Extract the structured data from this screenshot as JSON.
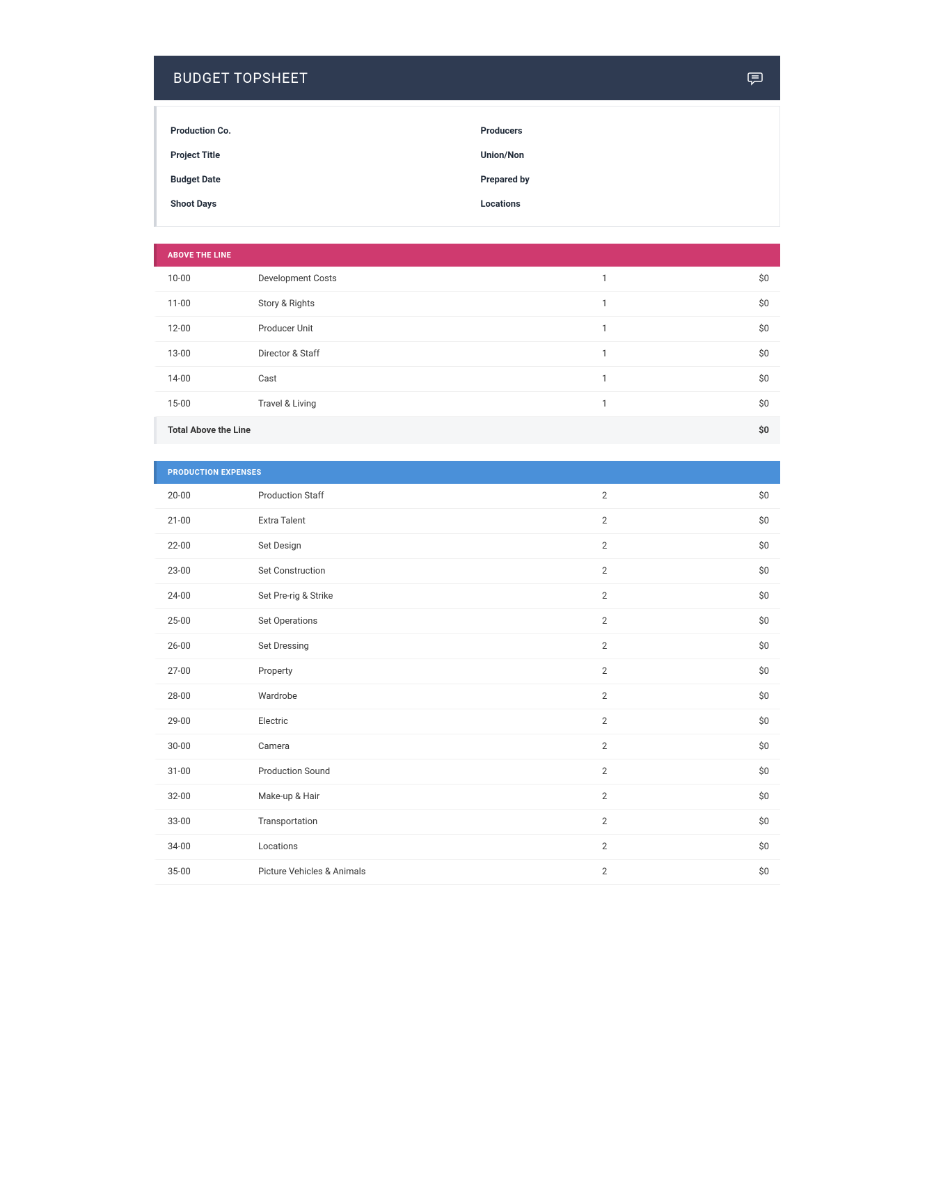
{
  "header": {
    "title": "BUDGET TOPSHEET"
  },
  "info": {
    "left": [
      {
        "label": "Production Co."
      },
      {
        "label": "Project Title"
      },
      {
        "label": "Budget Date"
      },
      {
        "label": "Shoot Days"
      }
    ],
    "right": [
      {
        "label": "Producers"
      },
      {
        "label": "Union/Non"
      },
      {
        "label": "Prepared by"
      },
      {
        "label": "Locations"
      }
    ]
  },
  "sections": [
    {
      "title": "ABOVE THE LINE",
      "color_class": "pink",
      "color": "#cf3a6f",
      "items": [
        {
          "code": "10-00",
          "desc": "Development Costs",
          "page": "1",
          "amount": "$0"
        },
        {
          "code": "11-00",
          "desc": "Story & Rights",
          "page": "1",
          "amount": "$0"
        },
        {
          "code": "12-00",
          "desc": "Producer Unit",
          "page": "1",
          "amount": "$0"
        },
        {
          "code": "13-00",
          "desc": "Director & Staff",
          "page": "1",
          "amount": "$0"
        },
        {
          "code": "14-00",
          "desc": "Cast",
          "page": "1",
          "amount": "$0"
        },
        {
          "code": "15-00",
          "desc": "Travel & Living",
          "page": "1",
          "amount": "$0"
        }
      ],
      "total_label": "Total Above the Line",
      "total_amount": "$0"
    },
    {
      "title": "PRODUCTION EXPENSES",
      "color_class": "blue",
      "color": "#4a90d9",
      "items": [
        {
          "code": "20-00",
          "desc": "Production Staff",
          "page": "2",
          "amount": "$0"
        },
        {
          "code": "21-00",
          "desc": "Extra Talent",
          "page": "2",
          "amount": "$0"
        },
        {
          "code": "22-00",
          "desc": "Set Design",
          "page": "2",
          "amount": "$0"
        },
        {
          "code": "23-00",
          "desc": "Set Construction",
          "page": "2",
          "amount": "$0"
        },
        {
          "code": "24-00",
          "desc": "Set Pre-rig & Strike",
          "page": "2",
          "amount": "$0"
        },
        {
          "code": "25-00",
          "desc": "Set Operations",
          "page": "2",
          "amount": "$0"
        },
        {
          "code": "26-00",
          "desc": "Set Dressing",
          "page": "2",
          "amount": "$0"
        },
        {
          "code": "27-00",
          "desc": "Property",
          "page": "2",
          "amount": "$0"
        },
        {
          "code": "28-00",
          "desc": "Wardrobe",
          "page": "2",
          "amount": "$0"
        },
        {
          "code": "29-00",
          "desc": "Electric",
          "page": "2",
          "amount": "$0"
        },
        {
          "code": "30-00",
          "desc": "Camera",
          "page": "2",
          "amount": "$0"
        },
        {
          "code": "31-00",
          "desc": "Production Sound",
          "page": "2",
          "amount": "$0"
        },
        {
          "code": "32-00",
          "desc": "Make-up & Hair",
          "page": "2",
          "amount": "$0"
        },
        {
          "code": "33-00",
          "desc": "Transportation",
          "page": "2",
          "amount": "$0"
        },
        {
          "code": "34-00",
          "desc": "Locations",
          "page": "2",
          "amount": "$0"
        },
        {
          "code": "35-00",
          "desc": "Picture Vehicles & Animals",
          "page": "2",
          "amount": "$0"
        }
      ]
    }
  ],
  "styling": {
    "header_bg": "#2f3b52",
    "header_text": "#ffffff",
    "info_border": "#e5e7eb",
    "row_border": "#f0f0f0",
    "total_bg": "#f5f6f7",
    "body_font_size": 13,
    "header_font_size": 20
  }
}
